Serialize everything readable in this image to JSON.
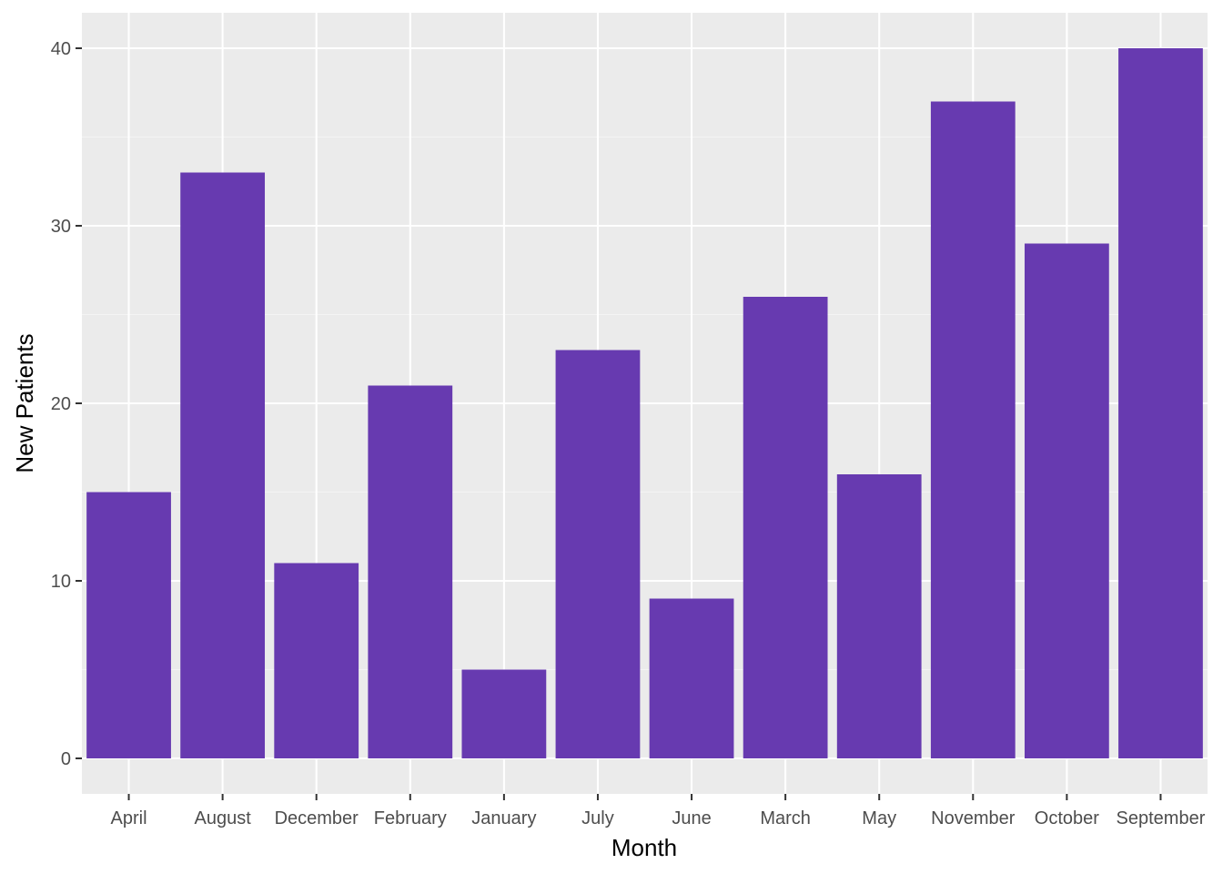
{
  "chart_data": {
    "type": "bar",
    "title": "",
    "xlabel": "Month",
    "ylabel": "New Patients",
    "categories": [
      "April",
      "August",
      "December",
      "February",
      "January",
      "July",
      "June",
      "March",
      "May",
      "November",
      "October",
      "September"
    ],
    "values": [
      15,
      33,
      11,
      21,
      5,
      23,
      9,
      26,
      16,
      37,
      29,
      40
    ],
    "ylim": [
      -2,
      42
    ],
    "yticks": [
      0,
      10,
      20,
      30,
      40
    ],
    "y_tick_labels": [
      "0",
      "10",
      "20",
      "30",
      "40"
    ],
    "grid": true,
    "colors": {
      "bar": "#673AB0",
      "panel_background": "#EBEBEB",
      "grid_major": "#FFFFFF",
      "grid_minor": "#F4F4F4"
    }
  }
}
